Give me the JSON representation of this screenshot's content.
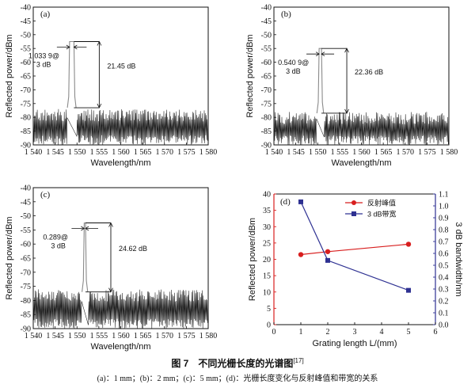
{
  "figure": {
    "title": "图 7　不同光栅长度的光谱图",
    "ref": "[17]",
    "description": "(a)：1 mm；(b)：2 mm；(c)：5 mm；(d)：光栅长度变化与反射峰值和带宽的关系"
  },
  "chart_data": [
    {
      "panel": "(a)",
      "type": "line",
      "xlabel": "Wavelength/nm",
      "ylabel": "Reflected power/dBm",
      "xlim": [
        1540,
        1580
      ],
      "ylim": [
        -90,
        -40
      ],
      "xticks": [
        "1 540",
        "1 545",
        "1 550",
        "1 555",
        "1 560",
        "1 565",
        "1 570",
        "1 575",
        "1 580"
      ],
      "yticks": [
        "-40",
        "-45",
        "-50",
        "-55",
        "-60",
        "-65",
        "-70",
        "-75",
        "-80",
        "-85",
        "-90"
      ],
      "peak_center": 1548.8,
      "peak_value": -52.5,
      "peak_top_width": 1.0,
      "noise_floor": -76.5,
      "noise_range": [
        -90,
        -77
      ],
      "bandwidth_label": [
        "1.033 9@",
        "3 dB"
      ],
      "delta_label": "21.45 dB"
    },
    {
      "panel": "(b)",
      "type": "line",
      "xlabel": "Wavelength/nm",
      "ylabel": "Reflected power/dBm",
      "xlim": [
        1540,
        1580
      ],
      "ylim": [
        -90,
        -40
      ],
      "xticks": [
        "1 540",
        "1 545",
        "1 550",
        "1 555",
        "1 560",
        "1 565",
        "1 570",
        "1 575",
        "1 580"
      ],
      "yticks": [
        "-40",
        "-45",
        "-50",
        "-55",
        "-60",
        "-65",
        "-70",
        "-75",
        "-80",
        "-85",
        "-90"
      ],
      "peak_center": 1550.6,
      "peak_value": -55.0,
      "peak_top_width": 0.54,
      "noise_floor": -78.5,
      "noise_range": [
        -90,
        -78
      ],
      "bandwidth_label": [
        "0.540 9@",
        "3 dB"
      ],
      "delta_label": "22.36 dB"
    },
    {
      "panel": "(c)",
      "type": "line",
      "xlabel": "Wavelength/nm",
      "ylabel": "Reflected power/dBm",
      "xlim": [
        1540,
        1580
      ],
      "ylim": [
        -90,
        -40
      ],
      "xticks": [
        "1 540",
        "1 545",
        "1 550",
        "1 555",
        "1 560",
        "1 565",
        "1 570",
        "1 575",
        "1 580"
      ],
      "yticks": [
        "-40",
        "-45",
        "-50",
        "-55",
        "-60",
        "-65",
        "-70",
        "-75",
        "-80",
        "-85",
        "-90"
      ],
      "peak_center": 1551.8,
      "peak_value": -52.5,
      "peak_top_width": 0.29,
      "noise_floor": -77.0,
      "noise_range": [
        -90,
        -76
      ],
      "bandwidth_label": [
        "0.289@",
        "3 dB"
      ],
      "delta_label": "24.62 dB"
    },
    {
      "panel": "(d)",
      "type": "line",
      "xlabel": "Grating length L/(mm)",
      "ylabel_left": "Reflected power/dBm",
      "ylabel_right": "3 dB bandwidth/nm",
      "x": [
        1,
        2,
        5
      ],
      "xlim": [
        0,
        6
      ],
      "xticks": [
        "0",
        "1",
        "2",
        "3",
        "4",
        "5",
        "6"
      ],
      "ylim_left": [
        0,
        40
      ],
      "yticks_left": [
        "0",
        "5",
        "10",
        "15",
        "20",
        "25",
        "30",
        "35",
        "40"
      ],
      "ylim_right": [
        0,
        1.1
      ],
      "yticks_right": [
        "0.0",
        "0.1",
        "0.2",
        "0.3",
        "0.4",
        "0.5",
        "0.6",
        "0.7",
        "0.8",
        "0.9",
        "1.0",
        "1.1"
      ],
      "series": [
        {
          "name": "反射峰值",
          "axis": "left",
          "values": [
            21.45,
            22.36,
            24.62
          ],
          "color": "#d81e1e",
          "marker": "circle"
        },
        {
          "name": "3 dB带宽",
          "axis": "right",
          "values": [
            1.0339,
            0.5409,
            0.289
          ],
          "color": "#2e3192",
          "marker": "square"
        }
      ]
    }
  ]
}
